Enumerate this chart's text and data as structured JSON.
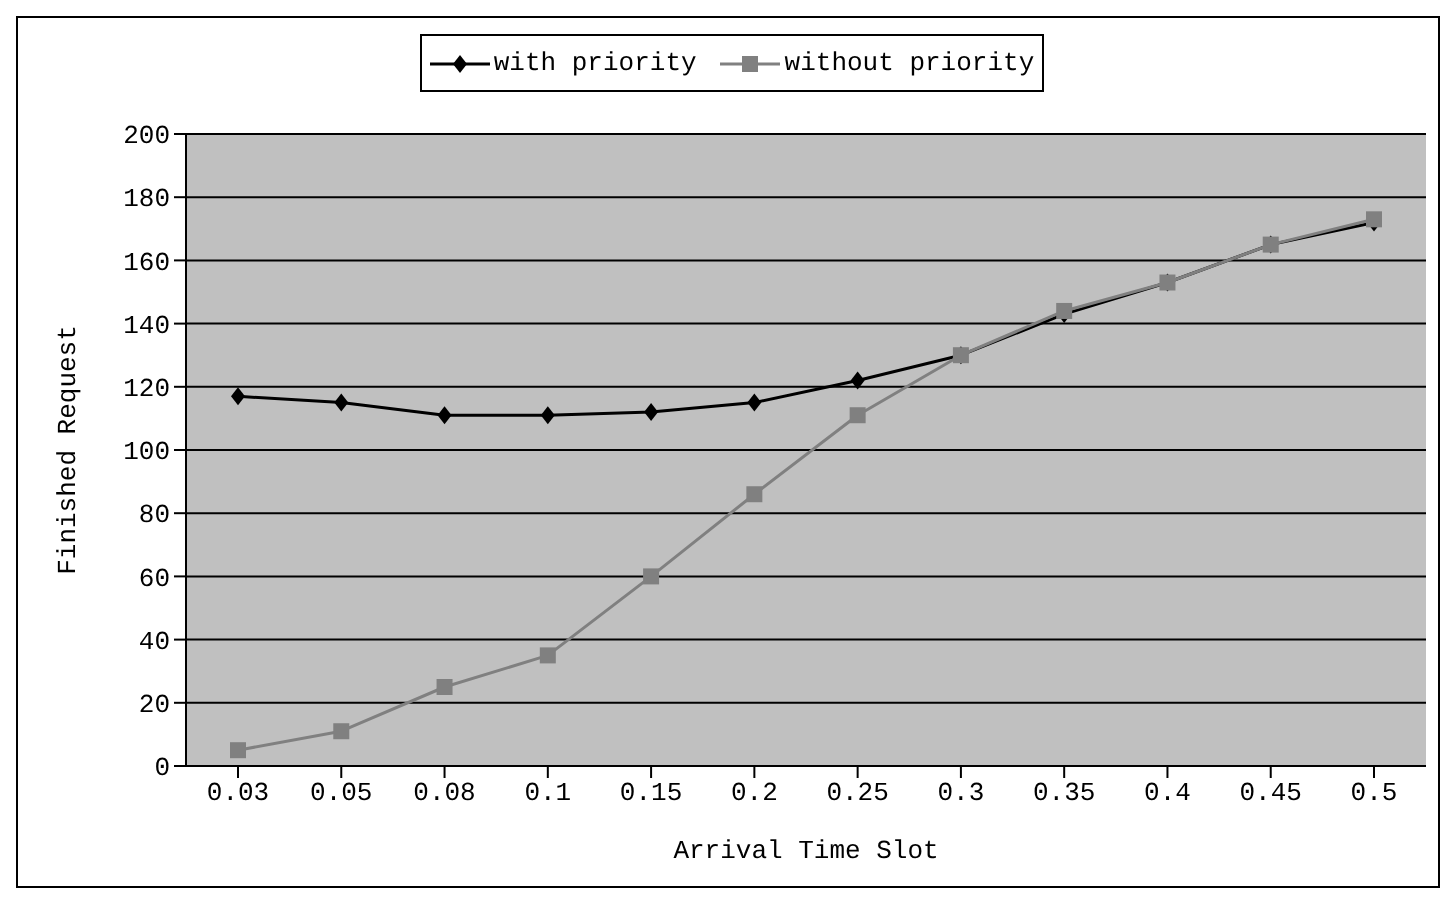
{
  "chart_data": {
    "type": "line",
    "xlabel": "Arrival Time Slot",
    "ylabel": "Finished Request",
    "categories": [
      "0.03",
      "0.05",
      "0.08",
      "0.1",
      "0.15",
      "0.2",
      "0.25",
      "0.3",
      "0.35",
      "0.4",
      "0.45",
      "0.5"
    ],
    "series": [
      {
        "name": "with priority",
        "color": "#000000",
        "marker": "diamond",
        "values": [
          117,
          115,
          111,
          111,
          112,
          115,
          122,
          130,
          143,
          153,
          165,
          172
        ]
      },
      {
        "name": "without priority",
        "color": "#808080",
        "marker": "square",
        "values": [
          5,
          11,
          25,
          35,
          60,
          86,
          111,
          130,
          144,
          153,
          165,
          173
        ]
      }
    ],
    "ylim": [
      0,
      200
    ],
    "yticks": [
      0,
      20,
      40,
      60,
      80,
      100,
      120,
      140,
      160,
      180,
      200
    ],
    "grid": "y",
    "legend": "top"
  }
}
